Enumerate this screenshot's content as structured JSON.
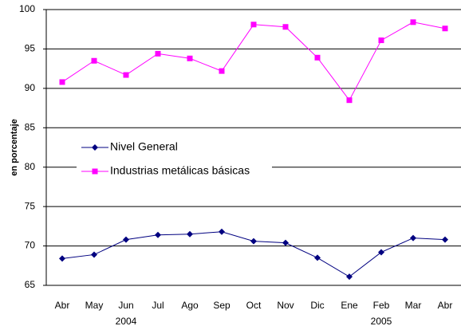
{
  "chart_data": {
    "type": "line",
    "y_label": "en porcentaje",
    "categories": [
      "Abr",
      "May",
      "Jun",
      "Jul",
      "Ago",
      "Sep",
      "Oct",
      "Nov",
      "Dic",
      "Ene",
      "Feb",
      "Mar",
      "Abr"
    ],
    "x_groups": [
      {
        "label": "2004",
        "category": 2
      },
      {
        "label": "2005",
        "category": 10
      }
    ],
    "series": [
      {
        "name": "Nivel General",
        "color": "#000080",
        "marker": "diamond",
        "values": [
          68.4,
          68.9,
          70.8,
          71.4,
          71.5,
          71.8,
          70.6,
          70.4,
          68.5,
          66.1,
          69.2,
          71.0,
          70.8
        ]
      },
      {
        "name": "Industrias metálicas básicas",
        "color": "#ff00ff",
        "marker": "square",
        "values": [
          90.8,
          93.5,
          91.7,
          94.4,
          93.8,
          92.2,
          98.1,
          97.8,
          93.9,
          88.5,
          96.1,
          98.4,
          97.6
        ]
      }
    ],
    "ylim": [
      65,
      100
    ],
    "yticks": [
      65,
      70,
      75,
      80,
      85,
      90,
      95,
      100
    ],
    "grid": true
  }
}
